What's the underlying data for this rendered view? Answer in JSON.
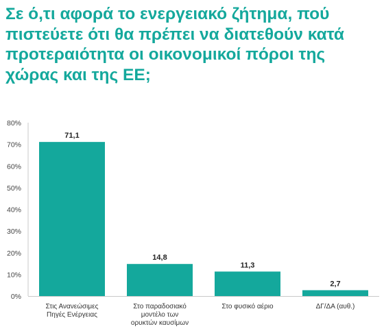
{
  "title_lines": [
    "Σε ό,τι αφορά το ενεργειακό ζήτημα, πού",
    "πιστεύετε ότι θα πρέπει να διατεθούν κατά",
    "προτεραιότητα οι οικονομικοί πόροι της",
    "χώρας και της ΕΕ;"
  ],
  "chart_data": {
    "type": "bar",
    "categories": [
      [
        "Στις Ανανεώσιμες",
        "Πηγές Ενέργειας"
      ],
      [
        "Στο παραδοσιακό",
        "μοντέλο των",
        "ορυκτών καυσίμων"
      ],
      [
        "Στο φυσικό αέριο"
      ],
      [
        "ΔΓ/ΔΑ (αυθ.)"
      ]
    ],
    "values": [
      71.1,
      14.8,
      11.3,
      2.7
    ],
    "value_labels": [
      "71,1",
      "14,8",
      "11,3",
      "2,7"
    ],
    "yticks": [
      "0%",
      "10%",
      "20%",
      "30%",
      "40%",
      "50%",
      "60%",
      "70%",
      "80%"
    ],
    "ylim": [
      0,
      80
    ],
    "bar_color": "#14a89c",
    "grid": false,
    "legend": "none"
  }
}
